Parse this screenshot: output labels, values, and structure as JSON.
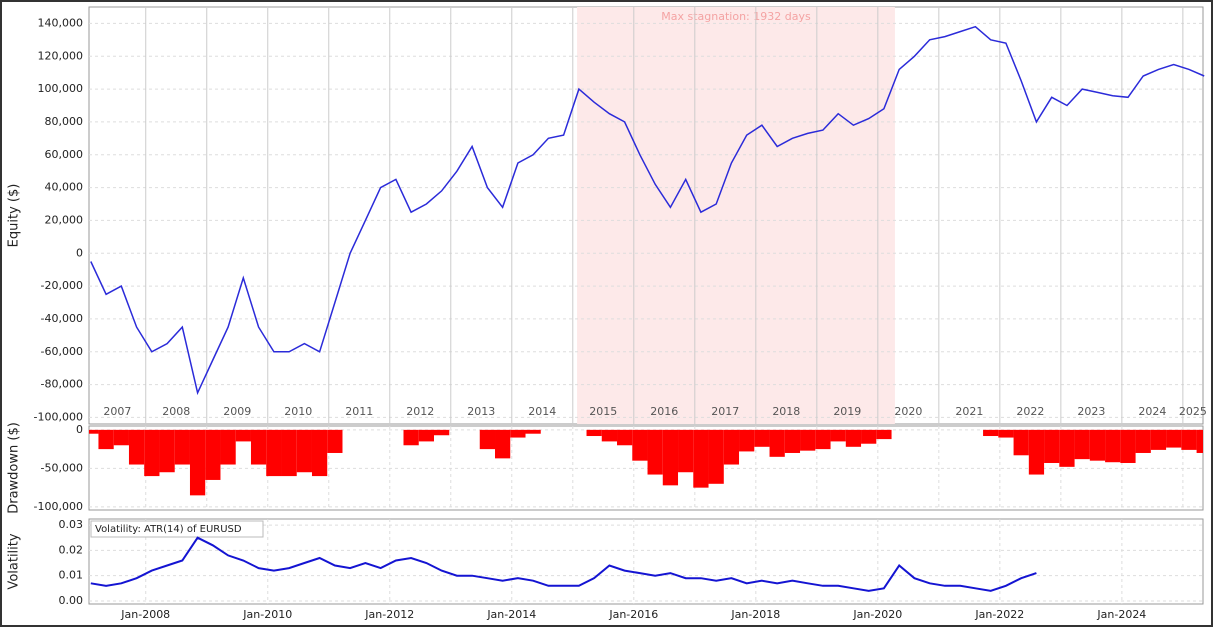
{
  "chart_data": [
    {
      "type": "line",
      "y_label": "Equity ($)",
      "color": "#2b2bd9",
      "stagnation": {
        "label": "Max stagnation: 1932 days",
        "x": [
          2015.07,
          2020.28
        ]
      },
      "xlim": [
        2007.07,
        2025.33
      ],
      "ylim": [
        -104000,
        150000
      ],
      "xticks": [
        2007,
        2008,
        2009,
        2010,
        2011,
        2012,
        2013,
        2014,
        2015,
        2016,
        2017,
        2018,
        2019,
        2020,
        2021,
        2022,
        2023,
        2024,
        2025
      ],
      "yticks": [
        {
          "value": -100000,
          "label": "-100,000"
        },
        {
          "value": -80000,
          "label": "-80,000"
        },
        {
          "value": -60000,
          "label": "-60,000"
        },
        {
          "value": -40000,
          "label": "-40,000"
        },
        {
          "value": -20000,
          "label": "-20,000"
        },
        0,
        {
          "value": 20000,
          "label": "20,000"
        },
        {
          "value": 40000,
          "label": "40,000"
        },
        {
          "value": 60000,
          "label": "60,000"
        },
        {
          "value": 80000,
          "label": "80,000"
        },
        {
          "value": 100000,
          "label": "100,000"
        },
        {
          "value": 120000,
          "label": "120,000"
        },
        {
          "value": 140000,
          "label": "140,000"
        }
      ],
      "x": [
        2007.1,
        2007.35,
        2007.6,
        2007.85,
        2008.1,
        2008.35,
        2008.6,
        2008.85,
        2009.1,
        2009.35,
        2009.6,
        2009.85,
        2010.1,
        2010.35,
        2010.6,
        2010.85,
        2011.1,
        2011.35,
        2011.6,
        2011.85,
        2012.1,
        2012.35,
        2012.6,
        2012.85,
        2013.1,
        2013.35,
        2013.6,
        2013.85,
        2014.1,
        2014.35,
        2014.6,
        2014.85,
        2015.1,
        2015.35,
        2015.6,
        2015.85,
        2016.1,
        2016.35,
        2016.6,
        2016.85,
        2017.1,
        2017.35,
        2017.6,
        2017.85,
        2018.1,
        2018.35,
        2018.6,
        2018.85,
        2019.1,
        2019.35,
        2019.6,
        2019.85,
        2020.1,
        2020.35,
        2020.6,
        2020.85,
        2021.1,
        2021.35,
        2021.6,
        2021.85,
        2022.1,
        2022.35,
        2022.6,
        2022.85,
        2023.1,
        2023.35,
        2023.6,
        2023.85,
        2024.1,
        2024.35,
        2024.6,
        2024.85,
        2025.1,
        2025.35
      ],
      "values": [
        -5000,
        -25000,
        -20000,
        -45000,
        -60000,
        -55000,
        -45000,
        -85000,
        -65000,
        -45000,
        -15000,
        -45000,
        -60000,
        -60000,
        -55000,
        -60000,
        -30000,
        0,
        20000,
        40000,
        45000,
        25000,
        30000,
        38000,
        50000,
        65000,
        40000,
        28000,
        55000,
        60000,
        70000,
        72000,
        100000,
        92000,
        85000,
        80000,
        60000,
        42000,
        28000,
        45000,
        25000,
        30000,
        55000,
        72000,
        78000,
        65000,
        70000,
        73000,
        75000,
        85000,
        78000,
        82000,
        88000,
        112000,
        120000,
        130000,
        132000,
        135000,
        138000,
        130000,
        128000,
        105000,
        80000,
        95000,
        90000,
        100000,
        98000,
        96000,
        95000,
        108000,
        112000,
        115000,
        112000,
        108000
      ]
    },
    {
      "type": "bar",
      "y_label": "Drawdown ($)",
      "color": "#ff0000",
      "xlim": [
        2007.07,
        2025.33
      ],
      "ylim": [
        -104000,
        5000
      ],
      "yticks": [
        {
          "value": -100000,
          "label": "-100,000"
        },
        {
          "value": -50000,
          "label": "-50,000"
        },
        0
      ],
      "x": [
        2007.1,
        2007.35,
        2007.6,
        2007.85,
        2008.1,
        2008.35,
        2008.6,
        2008.85,
        2009.1,
        2009.35,
        2009.6,
        2009.85,
        2010.1,
        2010.35,
        2010.6,
        2010.85,
        2011.1,
        2011.35,
        2011.6,
        2011.85,
        2012.1,
        2012.35,
        2012.6,
        2012.85,
        2013.1,
        2013.35,
        2013.6,
        2013.85,
        2014.1,
        2014.35,
        2014.6,
        2014.85,
        2015.1,
        2015.35,
        2015.6,
        2015.85,
        2016.1,
        2016.35,
        2016.6,
        2016.85,
        2017.1,
        2017.35,
        2017.6,
        2017.85,
        2018.1,
        2018.35,
        2018.6,
        2018.85,
        2019.1,
        2019.35,
        2019.6,
        2019.85,
        2020.1,
        2020.35,
        2020.6,
        2020.85,
        2021.1,
        2021.35,
        2021.6,
        2021.85,
        2022.1,
        2022.35,
        2022.6,
        2022.85,
        2023.1,
        2023.35,
        2023.6,
        2023.85,
        2024.1,
        2024.35,
        2024.6,
        2024.85,
        2025.1,
        2025.35
      ],
      "values": [
        -5000,
        -25000,
        -20000,
        -45000,
        -60000,
        -55000,
        -45000,
        -85000,
        -65000,
        -45000,
        -15000,
        -45000,
        -60000,
        -60000,
        -55000,
        -60000,
        -30000,
        0,
        0,
        0,
        0,
        -20000,
        -15000,
        -7000,
        0,
        0,
        -25000,
        -37000,
        -10000,
        -5000,
        0,
        0,
        0,
        -8000,
        -15000,
        -20000,
        -40000,
        -58000,
        -72000,
        -55000,
        -75000,
        -70000,
        -45000,
        -28000,
        -22000,
        -35000,
        -30000,
        -27000,
        -25000,
        -15000,
        -22000,
        -18000,
        -12000,
        0,
        0,
        0,
        0,
        0,
        0,
        -8000,
        -10000,
        -33000,
        -58000,
        -43000,
        -48000,
        -38000,
        -40000,
        -42000,
        -43000,
        -30000,
        -26000,
        -23000,
        -26000,
        -30000
      ]
    },
    {
      "type": "line",
      "title": "Volatility: ATR(14) of EURUSD",
      "y_label": "Volatility",
      "color": "#1414d2",
      "xlim": [
        2007.07,
        2025.33
      ],
      "ylim": [
        -0.0012,
        0.0324
      ],
      "xticks": [
        {
          "value": 2008,
          "label": "Jan-2008"
        },
        {
          "value": 2010,
          "label": "Jan-2010"
        },
        {
          "value": 2012,
          "label": "Jan-2012"
        },
        {
          "value": 2014,
          "label": "Jan-2014"
        },
        {
          "value": 2016,
          "label": "Jan-2016"
        },
        {
          "value": 2018,
          "label": "Jan-2018"
        },
        {
          "value": 2020,
          "label": "Jan-2020"
        },
        {
          "value": 2022,
          "label": "Jan-2022"
        },
        {
          "value": 2024,
          "label": "Jan-2024"
        }
      ],
      "yticks": [
        {
          "value": 0,
          "label": "0.00"
        },
        {
          "value": 0.01,
          "label": "0.01"
        },
        {
          "value": 0.02,
          "label": "0.02"
        },
        {
          "value": 0.03,
          "label": "0.03"
        }
      ],
      "x": [
        2007.1,
        2007.35,
        2007.6,
        2007.85,
        2008.1,
        2008.35,
        2008.6,
        2008.85,
        2009.1,
        2009.35,
        2009.6,
        2009.85,
        2010.1,
        2010.35,
        2010.6,
        2010.85,
        2011.1,
        2011.35,
        2011.6,
        2011.85,
        2012.1,
        2012.35,
        2012.6,
        2012.85,
        2013.1,
        2013.35,
        2013.6,
        2013.85,
        2014.1,
        2014.35,
        2014.6,
        2014.85,
        2015.1,
        2015.35,
        2015.6,
        2015.85,
        2016.1,
        2016.35,
        2016.6,
        2016.85,
        2017.1,
        2017.35,
        2017.6,
        2017.85,
        2018.1,
        2018.35,
        2018.6,
        2018.85,
        2019.1,
        2019.35,
        2019.6,
        2019.85,
        2020.1,
        2020.35,
        2020.6,
        2020.85,
        2021.1,
        2021.35,
        2021.6,
        2021.85,
        2022.1,
        2022.35,
        2022.6
      ],
      "values": [
        0.007,
        0.006,
        0.007,
        0.009,
        0.012,
        0.014,
        0.016,
        0.025,
        0.022,
        0.018,
        0.016,
        0.013,
        0.012,
        0.013,
        0.015,
        0.017,
        0.014,
        0.013,
        0.015,
        0.013,
        0.016,
        0.017,
        0.015,
        0.012,
        0.01,
        0.01,
        0.009,
        0.008,
        0.009,
        0.008,
        0.006,
        0.006,
        0.006,
        0.009,
        0.014,
        0.012,
        0.011,
        0.01,
        0.011,
        0.009,
        0.009,
        0.008,
        0.009,
        0.007,
        0.008,
        0.007,
        0.008,
        0.007,
        0.006,
        0.006,
        0.005,
        0.004,
        0.005,
        0.014,
        0.009,
        0.007,
        0.006,
        0.006,
        0.005,
        0.004,
        0.006,
        0.009,
        0.011
      ]
    }
  ]
}
